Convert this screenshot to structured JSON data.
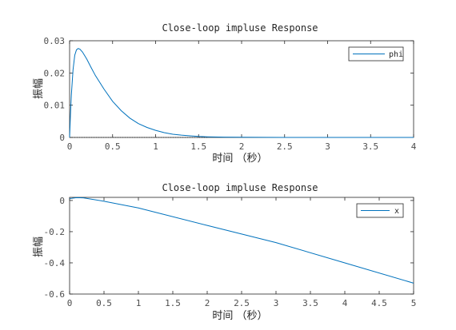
{
  "chart_data": [
    {
      "type": "line",
      "title": "Close-loop impluse Response",
      "xlabel": "时间 （秒）",
      "ylabel": "振幅",
      "xlim": [
        0,
        4
      ],
      "ylim": [
        0,
        0.03
      ],
      "xticks": [
        "0",
        "0.5",
        "1",
        "1.5",
        "2",
        "2.5",
        "3",
        "3.5",
        "4"
      ],
      "yticks": [
        "0",
        "0.01",
        "0.02",
        "0.03"
      ],
      "legend_position": "top-right",
      "series": [
        {
          "name": "phi",
          "color": "#0072bd",
          "x": [
            0,
            0.01,
            0.02,
            0.04,
            0.06,
            0.08,
            0.1,
            0.12,
            0.15,
            0.2,
            0.25,
            0.3,
            0.35,
            0.4,
            0.5,
            0.6,
            0.7,
            0.8,
            0.9,
            1.0,
            1.1,
            1.2,
            1.3,
            1.4,
            1.5,
            1.6,
            1.8,
            2.0,
            2.5,
            3.0,
            3.5,
            4.0
          ],
          "y": [
            0,
            0.007,
            0.013,
            0.021,
            0.0255,
            0.0272,
            0.0276,
            0.0274,
            0.0265,
            0.0243,
            0.0217,
            0.0192,
            0.0171,
            0.015,
            0.0112,
            0.0083,
            0.006,
            0.0043,
            0.0031,
            0.0022,
            0.0015,
            0.001,
            0.0007,
            0.0005,
            0.0003,
            0.0002,
            0.0001,
            5e-05,
            0,
            0,
            0,
            0
          ]
        }
      ],
      "reference_line": {
        "y": 0,
        "style": "dotted",
        "x_range": [
          0,
          1.6
        ]
      }
    },
    {
      "type": "line",
      "title": "Close-loop impluse Response",
      "xlabel": "时间 （秒）",
      "ylabel": "振幅",
      "xlim": [
        0,
        5
      ],
      "ylim": [
        -0.6,
        0.02
      ],
      "xticks": [
        "0",
        "0.5",
        "1",
        "1.5",
        "2",
        "2.5",
        "3",
        "3.5",
        "4",
        "4.5",
        "5"
      ],
      "yticks": [
        "0",
        "-0.2",
        "-0.4",
        "-0.6"
      ],
      "legend_position": "top-right",
      "series": [
        {
          "name": "x",
          "color": "#0072bd",
          "x": [
            0,
            0.1,
            0.2,
            0.5,
            1,
            2,
            3,
            4,
            5
          ],
          "y": [
            0.012,
            0.018,
            0.017,
            -0.005,
            -0.048,
            -0.16,
            -0.27,
            -0.4,
            -0.53
          ]
        }
      ]
    }
  ]
}
